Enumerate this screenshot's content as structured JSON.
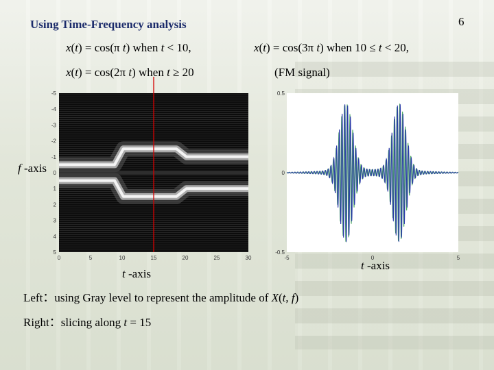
{
  "slide": {
    "title": "Using Time-Frequency analysis",
    "page_number": "6",
    "eq1": {
      "x": "x",
      "t": "t",
      "pre": "(",
      "mid": ") = cos(π ",
      "post": ") when ",
      "post2": " < 10,"
    },
    "eq2": {
      "x": "x",
      "t": "t",
      "pre": "(",
      "mid": ") = cos(3π ",
      "post": ") when 10 ≤ ",
      "post2": " < 20,"
    },
    "eq3": {
      "x": "x",
      "t": "t",
      "pre": "(",
      "mid": ") = cos(2π ",
      "post": ") when ",
      "post2": " ≥ 20"
    },
    "fm_label": "(FM signal)",
    "f_axis_label": {
      "var": "f",
      "rest": " -axis"
    },
    "t_axis_left": {
      "var": "t",
      "rest": " -axis"
    },
    "t_axis_right": {
      "var": "t",
      "rest": " -axis"
    },
    "caption1": {
      "prefix": "Left：using Gray level to represent the amplitude of ",
      "X": "X",
      "open": "(",
      "t": "t",
      "comma": ", ",
      "f": "f",
      "close": ")"
    },
    "caption2": {
      "prefix": "Right：slicing along ",
      "t": "t",
      "rest": " = 15"
    }
  },
  "chart_data": [
    {
      "type": "heatmap",
      "x_ticks": [
        "0",
        "5",
        "10",
        "15",
        "20",
        "25",
        "30"
      ],
      "y_ticks": [
        "-5",
        "-4",
        "-3",
        "-2",
        "-1",
        "0",
        "1",
        "2",
        "3",
        "4",
        "5"
      ],
      "xlim": [
        0,
        30
      ],
      "ylim": [
        -5,
        5
      ],
      "marker_line_x": 15,
      "colors": {
        "marker": "#d40000",
        "background": "#111111"
      }
    },
    {
      "type": "line",
      "x_ticks": [
        "-5",
        "0",
        "5"
      ],
      "y_ticks": [
        "0.5",
        "0",
        "-0.5"
      ],
      "xlim": [
        -5,
        5
      ],
      "ylim": [
        -0.5,
        0.5
      ],
      "colors": {
        "series": [
          "#2a3aa8",
          "#4aa860"
        ]
      }
    }
  ]
}
